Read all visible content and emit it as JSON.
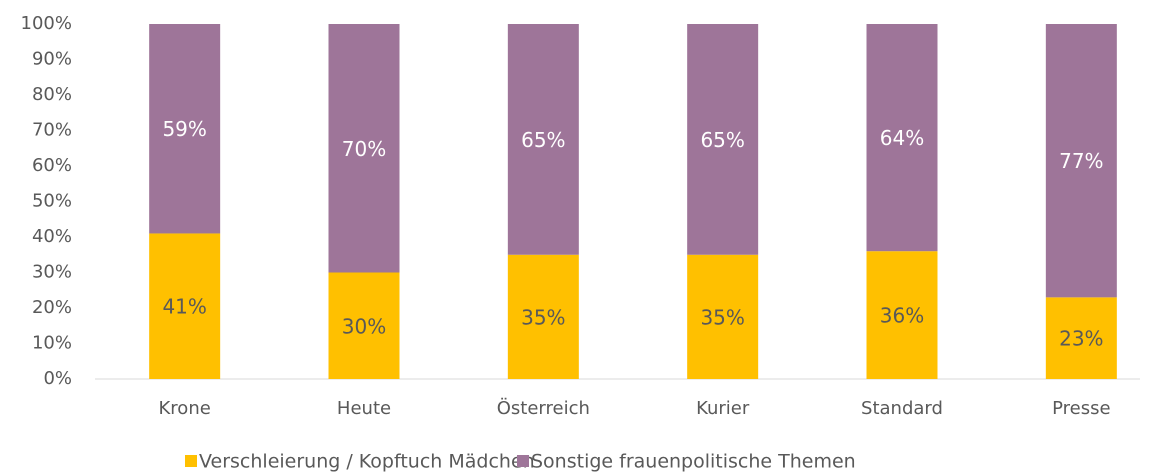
{
  "chart_data": {
    "type": "stacked_bar",
    "categories": [
      "Krone",
      "Heute",
      "Österreich",
      "Kurier",
      "Standard",
      "Presse"
    ],
    "series": [
      {
        "name": "Verschleierung / Kopftuch Mädchen",
        "color": "#FFC000",
        "values": [
          41,
          30,
          35,
          35,
          36,
          23
        ],
        "value_labels": [
          "41%",
          "30%",
          "35%",
          "35%",
          "36%",
          "23%"
        ]
      },
      {
        "name": "Sonstige frauenpolitische Themen",
        "color": "#9E7599",
        "values": [
          59,
          70,
          65,
          65,
          64,
          77
        ],
        "value_labels": [
          "59%",
          "70%",
          "65%",
          "65%",
          "64%",
          "77%"
        ]
      }
    ],
    "ylim": [
      0,
      100
    ],
    "yticks": [
      {
        "value": 0,
        "label": "0%"
      },
      {
        "value": 10,
        "label": "10%"
      },
      {
        "value": 20,
        "label": "20%"
      },
      {
        "value": 30,
        "label": "30%"
      },
      {
        "value": 40,
        "label": "40%"
      },
      {
        "value": 50,
        "label": "50%"
      },
      {
        "value": 60,
        "label": "60%"
      },
      {
        "value": 70,
        "label": "70%"
      },
      {
        "value": 80,
        "label": "80%"
      },
      {
        "value": 90,
        "label": "90%"
      },
      {
        "value": 100,
        "label": "100%"
      }
    ],
    "legend": "bottom"
  }
}
